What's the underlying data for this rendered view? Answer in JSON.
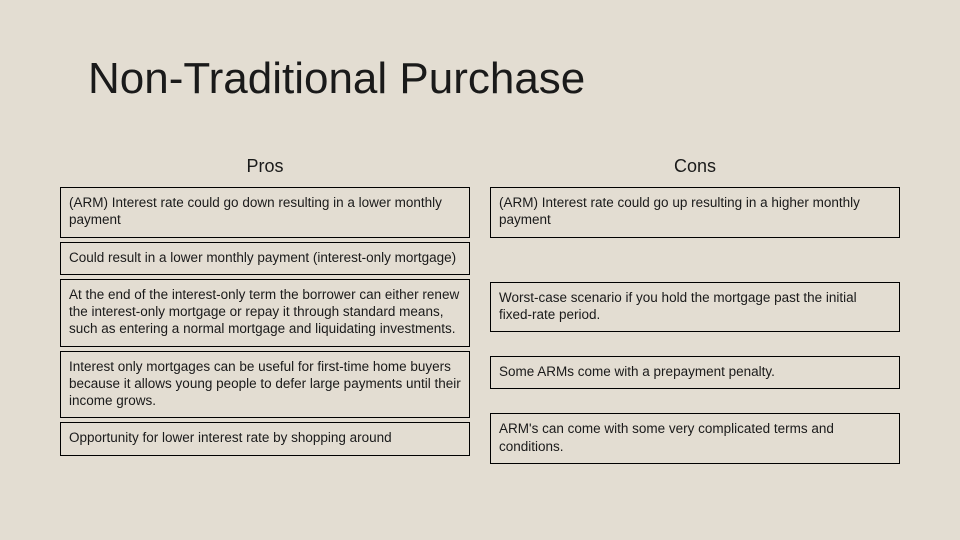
{
  "background_color": "#e3ddd2",
  "border_color": "#000000",
  "text_color": "#1a1a1a",
  "title": "Non-Traditional Purchase",
  "title_fontsize": 44,
  "header_fontsize": 18,
  "cell_fontsize": 13.5,
  "columns": {
    "pros": {
      "header": "Pros",
      "items": [
        "(ARM) Interest rate could go down resulting in a lower monthly payment",
        "Could result in a lower monthly payment (interest-only mortgage)",
        "At the end of the interest-only term the borrower can either renew the interest-only mortgage or repay it through standard means, such as entering a normal mortgage and liquidating investments.",
        "Interest only mortgages can be useful for first-time home buyers because it allows young people to defer large payments until their income grows.",
        "Opportunity for lower interest rate by shopping around"
      ]
    },
    "cons": {
      "header": "Cons",
      "items": [
        "(ARM) Interest rate could go up resulting in a higher monthly payment",
        "Worst-case scenario if you hold the mortgage past the initial fixed-rate period.",
        "Some ARMs come with a prepayment penalty.",
        "ARM's can come with some very complicated terms and conditions."
      ]
    }
  }
}
